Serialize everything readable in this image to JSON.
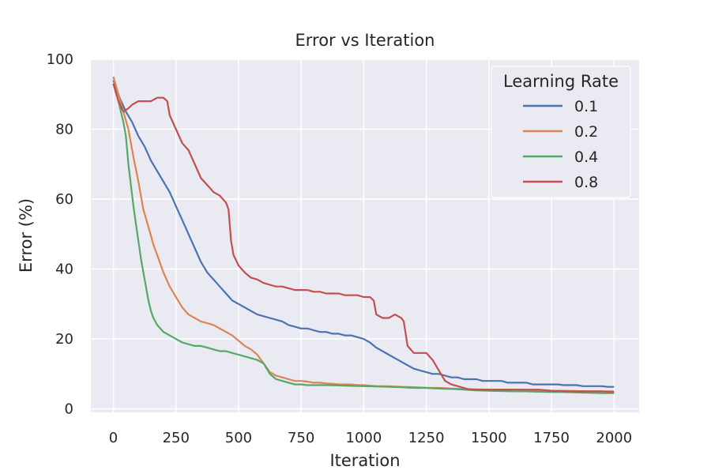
{
  "chart_data": {
    "type": "line",
    "title": "Error vs Iteration",
    "xlabel": "Iteration",
    "ylabel": "Error (%)",
    "xlim": [
      -90,
      2100
    ],
    "ylim": [
      -1,
      100
    ],
    "xticks": [
      0,
      250,
      500,
      750,
      1000,
      1250,
      1500,
      1750,
      2000
    ],
    "yticks": [
      0,
      20,
      40,
      60,
      80,
      100
    ],
    "grid": true,
    "legend": {
      "title": "Learning Rate",
      "placement": "top-right"
    },
    "series": [
      {
        "name": "0.1",
        "color": "#4c72b0",
        "points": [
          [
            0,
            94
          ],
          [
            25,
            89
          ],
          [
            50,
            85
          ],
          [
            75,
            82
          ],
          [
            100,
            78
          ],
          [
            125,
            75
          ],
          [
            150,
            71
          ],
          [
            175,
            68
          ],
          [
            200,
            65
          ],
          [
            225,
            62
          ],
          [
            250,
            58
          ],
          [
            275,
            54
          ],
          [
            300,
            50
          ],
          [
            325,
            46
          ],
          [
            350,
            42
          ],
          [
            375,
            39
          ],
          [
            400,
            37
          ],
          [
            425,
            35
          ],
          [
            450,
            33
          ],
          [
            475,
            31
          ],
          [
            500,
            30
          ],
          [
            525,
            29
          ],
          [
            550,
            28
          ],
          [
            575,
            27
          ],
          [
            600,
            26.5
          ],
          [
            625,
            26
          ],
          [
            650,
            25.5
          ],
          [
            675,
            25
          ],
          [
            700,
            24
          ],
          [
            725,
            23.5
          ],
          [
            750,
            23
          ],
          [
            775,
            23
          ],
          [
            800,
            22.5
          ],
          [
            825,
            22
          ],
          [
            850,
            22
          ],
          [
            875,
            21.5
          ],
          [
            900,
            21.5
          ],
          [
            925,
            21
          ],
          [
            950,
            21
          ],
          [
            975,
            20.5
          ],
          [
            1000,
            20
          ],
          [
            1025,
            19
          ],
          [
            1050,
            17.5
          ],
          [
            1075,
            16.5
          ],
          [
            1100,
            15.5
          ],
          [
            1125,
            14.5
          ],
          [
            1150,
            13.5
          ],
          [
            1175,
            12.5
          ],
          [
            1200,
            11.5
          ],
          [
            1225,
            11
          ],
          [
            1250,
            10.5
          ],
          [
            1275,
            10
          ],
          [
            1300,
            10
          ],
          [
            1325,
            9.5
          ],
          [
            1350,
            9
          ],
          [
            1375,
            9
          ],
          [
            1400,
            8.5
          ],
          [
            1425,
            8.5
          ],
          [
            1450,
            8.5
          ],
          [
            1475,
            8
          ],
          [
            1500,
            8
          ],
          [
            1525,
            8
          ],
          [
            1550,
            8
          ],
          [
            1575,
            7.5
          ],
          [
            1600,
            7.5
          ],
          [
            1625,
            7.5
          ],
          [
            1650,
            7.5
          ],
          [
            1675,
            7
          ],
          [
            1700,
            7
          ],
          [
            1725,
            7
          ],
          [
            1750,
            7
          ],
          [
            1775,
            7
          ],
          [
            1800,
            6.8
          ],
          [
            1825,
            6.8
          ],
          [
            1850,
            6.8
          ],
          [
            1875,
            6.5
          ],
          [
            1900,
            6.5
          ],
          [
            1925,
            6.5
          ],
          [
            1950,
            6.5
          ],
          [
            1975,
            6.3
          ],
          [
            2000,
            6.3
          ]
        ]
      },
      {
        "name": "0.2",
        "color": "#dd8452",
        "points": [
          [
            0,
            95
          ],
          [
            20,
            90
          ],
          [
            40,
            85
          ],
          [
            60,
            80
          ],
          [
            80,
            72
          ],
          [
            100,
            65
          ],
          [
            120,
            57
          ],
          [
            140,
            52
          ],
          [
            160,
            47
          ],
          [
            180,
            43
          ],
          [
            200,
            39
          ],
          [
            225,
            35
          ],
          [
            250,
            32
          ],
          [
            275,
            29
          ],
          [
            300,
            27
          ],
          [
            325,
            26
          ],
          [
            350,
            25
          ],
          [
            375,
            24.5
          ],
          [
            400,
            24
          ],
          [
            425,
            23
          ],
          [
            450,
            22
          ],
          [
            475,
            21
          ],
          [
            500,
            19.5
          ],
          [
            525,
            18
          ],
          [
            550,
            17
          ],
          [
            575,
            15.5
          ],
          [
            600,
            13
          ],
          [
            625,
            10.5
          ],
          [
            650,
            9.5
          ],
          [
            675,
            9
          ],
          [
            700,
            8.5
          ],
          [
            725,
            8
          ],
          [
            750,
            8
          ],
          [
            775,
            7.8
          ],
          [
            800,
            7.5
          ],
          [
            825,
            7.5
          ],
          [
            850,
            7.3
          ],
          [
            875,
            7.2
          ],
          [
            900,
            7
          ],
          [
            925,
            7
          ],
          [
            950,
            7
          ],
          [
            975,
            6.8
          ],
          [
            1000,
            6.8
          ],
          [
            1050,
            6.5
          ],
          [
            1100,
            6.5
          ],
          [
            1150,
            6.3
          ],
          [
            1200,
            6.2
          ],
          [
            1250,
            6
          ],
          [
            1300,
            6
          ],
          [
            1350,
            5.8
          ],
          [
            1400,
            5.7
          ],
          [
            1450,
            5.6
          ],
          [
            1500,
            5.5
          ],
          [
            1550,
            5.5
          ],
          [
            1600,
            5.5
          ],
          [
            1650,
            5.4
          ],
          [
            1700,
            5.3
          ],
          [
            1750,
            5.2
          ],
          [
            1800,
            5.2
          ],
          [
            1850,
            5.1
          ],
          [
            1900,
            5
          ],
          [
            1950,
            5
          ],
          [
            2000,
            5
          ]
        ]
      },
      {
        "name": "0.4",
        "color": "#55a868",
        "points": [
          [
            0,
            93
          ],
          [
            20,
            88
          ],
          [
            40,
            82
          ],
          [
            50,
            78
          ],
          [
            60,
            70
          ],
          [
            70,
            64
          ],
          [
            80,
            58
          ],
          [
            90,
            53
          ],
          [
            100,
            48
          ],
          [
            110,
            43
          ],
          [
            120,
            39
          ],
          [
            130,
            35
          ],
          [
            140,
            31
          ],
          [
            150,
            28
          ],
          [
            160,
            26
          ],
          [
            175,
            24
          ],
          [
            200,
            22
          ],
          [
            225,
            21
          ],
          [
            250,
            20
          ],
          [
            275,
            19
          ],
          [
            300,
            18.5
          ],
          [
            325,
            18
          ],
          [
            350,
            18
          ],
          [
            375,
            17.5
          ],
          [
            400,
            17
          ],
          [
            425,
            16.5
          ],
          [
            450,
            16.5
          ],
          [
            475,
            16
          ],
          [
            500,
            15.5
          ],
          [
            525,
            15
          ],
          [
            550,
            14.5
          ],
          [
            575,
            14
          ],
          [
            600,
            13
          ],
          [
            625,
            10
          ],
          [
            650,
            8.5
          ],
          [
            675,
            8
          ],
          [
            700,
            7.5
          ],
          [
            725,
            7
          ],
          [
            750,
            7
          ],
          [
            775,
            6.8
          ],
          [
            800,
            6.8
          ],
          [
            850,
            6.8
          ],
          [
            900,
            6.7
          ],
          [
            950,
            6.6
          ],
          [
            1000,
            6.5
          ],
          [
            1050,
            6.4
          ],
          [
            1100,
            6.3
          ],
          [
            1150,
            6.2
          ],
          [
            1200,
            6
          ],
          [
            1250,
            6
          ],
          [
            1300,
            5.8
          ],
          [
            1350,
            5.7
          ],
          [
            1400,
            5.5
          ],
          [
            1450,
            5.3
          ],
          [
            1500,
            5.2
          ],
          [
            1550,
            5.1
          ],
          [
            1600,
            5
          ],
          [
            1650,
            5
          ],
          [
            1700,
            4.9
          ],
          [
            1750,
            4.8
          ],
          [
            1800,
            4.8
          ],
          [
            1850,
            4.7
          ],
          [
            1900,
            4.6
          ],
          [
            1950,
            4.5
          ],
          [
            2000,
            4.5
          ]
        ]
      },
      {
        "name": "0.8",
        "color": "#c44e52",
        "points": [
          [
            0,
            93
          ],
          [
            20,
            88
          ],
          [
            40,
            85
          ],
          [
            60,
            86
          ],
          [
            75,
            87
          ],
          [
            100,
            88
          ],
          [
            125,
            88
          ],
          [
            150,
            88
          ],
          [
            175,
            89
          ],
          [
            200,
            89
          ],
          [
            215,
            88
          ],
          [
            225,
            84
          ],
          [
            250,
            80
          ],
          [
            275,
            76
          ],
          [
            300,
            74
          ],
          [
            325,
            70
          ],
          [
            350,
            66
          ],
          [
            375,
            64
          ],
          [
            400,
            62
          ],
          [
            425,
            61
          ],
          [
            450,
            59
          ],
          [
            460,
            57
          ],
          [
            470,
            48
          ],
          [
            480,
            44
          ],
          [
            500,
            41
          ],
          [
            525,
            39
          ],
          [
            550,
            37.5
          ],
          [
            575,
            37
          ],
          [
            600,
            36
          ],
          [
            625,
            35.5
          ],
          [
            650,
            35
          ],
          [
            675,
            35
          ],
          [
            700,
            34.5
          ],
          [
            725,
            34
          ],
          [
            750,
            34
          ],
          [
            775,
            34
          ],
          [
            800,
            33.5
          ],
          [
            825,
            33.5
          ],
          [
            850,
            33
          ],
          [
            875,
            33
          ],
          [
            900,
            33
          ],
          [
            925,
            32.5
          ],
          [
            950,
            32.5
          ],
          [
            975,
            32.5
          ],
          [
            1000,
            32
          ],
          [
            1025,
            32
          ],
          [
            1040,
            31
          ],
          [
            1050,
            27
          ],
          [
            1075,
            26
          ],
          [
            1100,
            26
          ],
          [
            1125,
            27
          ],
          [
            1150,
            26
          ],
          [
            1160,
            25
          ],
          [
            1175,
            18
          ],
          [
            1200,
            16
          ],
          [
            1225,
            16
          ],
          [
            1250,
            16
          ],
          [
            1275,
            14
          ],
          [
            1300,
            11
          ],
          [
            1325,
            8
          ],
          [
            1350,
            7
          ],
          [
            1375,
            6.5
          ],
          [
            1400,
            6
          ],
          [
            1425,
            5.5
          ],
          [
            1450,
            5.5
          ],
          [
            1475,
            5.5
          ],
          [
            1500,
            5.5
          ],
          [
            1550,
            5.5
          ],
          [
            1600,
            5.5
          ],
          [
            1650,
            5.5
          ],
          [
            1700,
            5.5
          ],
          [
            1750,
            5.2
          ],
          [
            1800,
            5
          ],
          [
            1850,
            5
          ],
          [
            1900,
            5
          ],
          [
            1950,
            5
          ],
          [
            2000,
            4.8
          ]
        ]
      }
    ]
  }
}
